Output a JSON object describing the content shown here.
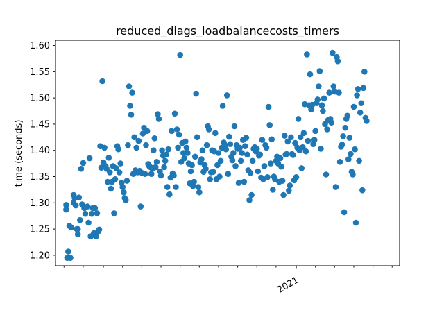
{
  "chart_data": {
    "type": "scatter",
    "title": "reduced_diags_loadbalancecosts_timers",
    "xlabel": "",
    "ylabel": "time (seconds)",
    "ylim": [
      1.18,
      1.61
    ],
    "xlim": [
      -8,
      315
    ],
    "y_ticks": [
      "1.20",
      "1.25",
      "1.30",
      "1.35",
      "1.40",
      "1.45",
      "1.50",
      "1.55",
      "1.60"
    ],
    "x_major_ticks": [
      {
        "x": 218,
        "label": "2021"
      }
    ],
    "x_minor_ticks": [
      0,
      18,
      37,
      55,
      73,
      91,
      109,
      127,
      145,
      163,
      181,
      199,
      218,
      236,
      254,
      272,
      290,
      308
    ],
    "marker_color": "#1f77b4",
    "grid": false,
    "legend": "none",
    "points": [
      [
        3,
        1.195
      ],
      [
        6,
        1.195
      ],
      [
        4,
        1.207
      ],
      [
        2,
        1.287
      ],
      [
        2,
        1.296
      ],
      [
        5,
        1.256
      ],
      [
        7,
        1.253
      ],
      [
        9,
        1.315
      ],
      [
        9,
        1.3
      ],
      [
        10,
        1.309
      ],
      [
        11,
        1.295
      ],
      [
        12,
        1.25
      ],
      [
        13,
        1.24
      ],
      [
        13,
        1.25
      ],
      [
        14,
        1.31
      ],
      [
        15,
        1.267
      ],
      [
        16,
        1.365
      ],
      [
        17,
        1.297
      ],
      [
        18,
        1.376
      ],
      [
        19,
        1.29
      ],
      [
        20,
        1.279
      ],
      [
        22,
        1.293
      ],
      [
        23,
        1.262
      ],
      [
        24,
        1.385
      ],
      [
        25,
        1.236
      ],
      [
        26,
        1.279
      ],
      [
        27,
        1.29
      ],
      [
        28,
        1.242
      ],
      [
        29,
        1.29
      ],
      [
        30,
        1.236
      ],
      [
        31,
        1.28
      ],
      [
        32,
        1.245
      ],
      [
        33,
        1.249
      ],
      [
        34,
        1.408
      ],
      [
        35,
        1.367
      ],
      [
        36,
        1.532
      ],
      [
        37,
        1.377
      ],
      [
        38,
        1.405
      ],
      [
        39,
        1.37
      ],
      [
        40,
        1.365
      ],
      [
        41,
        1.34
      ],
      [
        42,
        1.386
      ],
      [
        43,
        1.358
      ],
      [
        44,
        1.327
      ],
      [
        45,
        1.34
      ],
      [
        46,
        1.37
      ],
      [
        47,
        1.28
      ],
      [
        48,
        1.345
      ],
      [
        49,
        1.366
      ],
      [
        50,
        1.408
      ],
      [
        51,
        1.402
      ],
      [
        52,
        1.358
      ],
      [
        53,
        1.375
      ],
      [
        54,
        1.338
      ],
      [
        55,
        1.33
      ],
      [
        56,
        1.32
      ],
      [
        57,
        1.309
      ],
      [
        58,
        1.305
      ],
      [
        59,
        1.342
      ],
      [
        60,
        1.41
      ],
      [
        61,
        1.522
      ],
      [
        62,
        1.485
      ],
      [
        63,
        1.468
      ],
      [
        64,
        1.51
      ],
      [
        65,
        1.355
      ],
      [
        66,
        1.425
      ],
      [
        67,
        1.362
      ],
      [
        68,
        1.405
      ],
      [
        69,
        1.358
      ],
      [
        70,
        1.418
      ],
      [
        71,
        1.361
      ],
      [
        72,
        1.293
      ],
      [
        73,
        1.357
      ],
      [
        74,
        1.432
      ],
      [
        75,
        1.443
      ],
      [
        76,
        1.355
      ],
      [
        77,
        1.41
      ],
      [
        78,
        1.437
      ],
      [
        79,
        1.374
      ],
      [
        80,
        1.37
      ],
      [
        81,
        1.368
      ],
      [
        82,
        1.355
      ],
      [
        83,
        1.365
      ],
      [
        84,
        1.4
      ],
      [
        85,
        1.423
      ],
      [
        86,
        1.368
      ],
      [
        87,
        1.378
      ],
      [
        88,
        1.469
      ],
      [
        89,
        1.46
      ],
      [
        90,
        1.36
      ],
      [
        91,
        1.352
      ],
      [
        92,
        1.4
      ],
      [
        93,
        1.39
      ],
      [
        94,
        1.368
      ],
      [
        95,
        1.38
      ],
      [
        96,
        1.392
      ],
      [
        97,
        1.33
      ],
      [
        98,
        1.402
      ],
      [
        99,
        1.316
      ],
      [
        100,
        1.348
      ],
      [
        101,
        1.437
      ],
      [
        102,
        1.356
      ],
      [
        103,
        1.352
      ],
      [
        104,
        1.47
      ],
      [
        105,
        1.33
      ],
      [
        106,
        1.44
      ],
      [
        107,
        1.405
      ],
      [
        108,
        1.43
      ],
      [
        109,
        1.582
      ],
      [
        110,
        1.378
      ],
      [
        111,
        1.414
      ],
      [
        112,
        1.395
      ],
      [
        113,
        1.385
      ],
      [
        114,
        1.417
      ],
      [
        115,
        1.405
      ],
      [
        116,
        1.395
      ],
      [
        117,
        1.375
      ],
      [
        118,
        1.337
      ],
      [
        119,
        1.36
      ],
      [
        120,
        1.372
      ],
      [
        121,
        1.332
      ],
      [
        122,
        1.34
      ],
      [
        123,
        1.388
      ],
      [
        124,
        1.508
      ],
      [
        125,
        1.425
      ],
      [
        126,
        1.33
      ],
      [
        127,
        1.32
      ],
      [
        128,
        1.377
      ],
      [
        129,
        1.383
      ],
      [
        130,
        1.4
      ],
      [
        131,
        1.359
      ],
      [
        132,
        1.372
      ],
      [
        133,
        1.365
      ],
      [
        134,
        1.41
      ],
      [
        135,
        1.446
      ],
      [
        136,
        1.44
      ],
      [
        137,
        1.345
      ],
      [
        138,
        1.358
      ],
      [
        139,
        1.4
      ],
      [
        140,
        1.359
      ],
      [
        141,
        1.398
      ],
      [
        142,
        1.433
      ],
      [
        143,
        1.345
      ],
      [
        144,
        1.372
      ],
      [
        145,
        1.395
      ],
      [
        146,
        1.35
      ],
      [
        147,
        1.38
      ],
      [
        148,
        1.405
      ],
      [
        149,
        1.485
      ],
      [
        150,
        1.415
      ],
      [
        151,
        1.41
      ],
      [
        152,
        1.402
      ],
      [
        153,
        1.505
      ],
      [
        154,
        1.355
      ],
      [
        155,
        1.426
      ],
      [
        156,
        1.412
      ],
      [
        157,
        1.388
      ],
      [
        158,
        1.381
      ],
      [
        159,
        1.395
      ],
      [
        160,
        1.446
      ],
      [
        161,
        1.37
      ],
      [
        162,
        1.41
      ],
      [
        163,
        1.403
      ],
      [
        164,
        1.338
      ],
      [
        165,
        1.405
      ],
      [
        166,
        1.38
      ],
      [
        167,
        1.395
      ],
      [
        168,
        1.42
      ],
      [
        169,
        1.34
      ],
      [
        170,
        1.408
      ],
      [
        171,
        1.424
      ],
      [
        172,
        1.392
      ],
      [
        173,
        1.362
      ],
      [
        174,
        1.305
      ],
      [
        175,
        1.357
      ],
      [
        176,
        1.315
      ],
      [
        177,
        1.38
      ],
      [
        178,
        1.403
      ],
      [
        179,
        1.406
      ],
      [
        180,
        1.398
      ],
      [
        181,
        1.403
      ],
      [
        182,
        1.36
      ],
      [
        183,
        1.39
      ],
      [
        184,
        1.392
      ],
      [
        185,
        1.348
      ],
      [
        186,
        1.42
      ],
      [
        187,
        1.345
      ],
      [
        188,
        1.37
      ],
      [
        189,
        1.41
      ],
      [
        190,
        1.405
      ],
      [
        191,
        1.349
      ],
      [
        192,
        1.483
      ],
      [
        193,
        1.448
      ],
      [
        194,
        1.375
      ],
      [
        195,
        1.421
      ],
      [
        196,
        1.325
      ],
      [
        197,
        1.35
      ],
      [
        198,
        1.345
      ],
      [
        199,
        1.38
      ],
      [
        200,
        1.388
      ],
      [
        201,
        1.375
      ],
      [
        202,
        1.34
      ],
      [
        203,
        1.385
      ],
      [
        204,
        1.369
      ],
      [
        205,
        1.342
      ],
      [
        206,
        1.315
      ],
      [
        207,
        1.428
      ],
      [
        208,
        1.392
      ],
      [
        209,
        1.393
      ],
      [
        210,
        1.417
      ],
      [
        211,
        1.323
      ],
      [
        212,
        1.333
      ],
      [
        213,
        1.425
      ],
      [
        214,
        1.393
      ],
      [
        215,
        1.391
      ],
      [
        216,
        1.343
      ],
      [
        217,
        1.414
      ],
      [
        218,
        1.349
      ],
      [
        219,
        1.405
      ],
      [
        220,
        1.46
      ],
      [
        221,
        1.4
      ],
      [
        222,
        1.425
      ],
      [
        223,
        1.366
      ],
      [
        224,
        1.406
      ],
      [
        225,
        1.433
      ],
      [
        226,
        1.488
      ],
      [
        227,
        1.398
      ],
      [
        228,
        1.583
      ],
      [
        229,
        1.418
      ],
      [
        230,
        1.486
      ],
      [
        231,
        1.545
      ],
      [
        232,
        1.478
      ],
      [
        233,
        1.487
      ],
      [
        234,
        1.412
      ],
      [
        235,
        1.42
      ],
      [
        236,
        1.437
      ],
      [
        237,
        1.49
      ],
      [
        238,
        1.497
      ],
      [
        239,
        1.522
      ],
      [
        240,
        1.551
      ],
      [
        241,
        1.403
      ],
      [
        242,
        1.486
      ],
      [
        243,
        1.475
      ],
      [
        244,
        1.499
      ],
      [
        245,
        1.45
      ],
      [
        246,
        1.354
      ],
      [
        247,
        1.44
      ],
      [
        248,
        1.458
      ],
      [
        249,
        1.51
      ],
      [
        250,
        1.46
      ],
      [
        251,
        1.453
      ],
      [
        252,
        1.586
      ],
      [
        253,
        1.522
      ],
      [
        254,
        1.512
      ],
      [
        255,
        1.33
      ],
      [
        256,
        1.578
      ],
      [
        257,
        1.57
      ],
      [
        258,
        1.51
      ],
      [
        259,
        1.378
      ],
      [
        260,
        1.407
      ],
      [
        261,
        1.411
      ],
      [
        262,
        1.427
      ],
      [
        263,
        1.282
      ],
      [
        264,
        1.443
      ],
      [
        265,
        1.46
      ],
      [
        266,
        1.466
      ],
      [
        267,
        1.383
      ],
      [
        268,
        1.424
      ],
      [
        269,
        1.393
      ],
      [
        270,
        1.359
      ],
      [
        271,
        1.354
      ],
      [
        272,
        1.483
      ],
      [
        273,
        1.402
      ],
      [
        274,
        1.262
      ],
      [
        275,
        1.505
      ],
      [
        276,
        1.517
      ],
      [
        277,
        1.38
      ],
      [
        278,
        1.472
      ],
      [
        279,
        1.49
      ],
      [
        280,
        1.324
      ],
      [
        281,
        1.519
      ],
      [
        282,
        1.55
      ],
      [
        283,
        1.462
      ],
      [
        284,
        1.456
      ]
    ]
  }
}
